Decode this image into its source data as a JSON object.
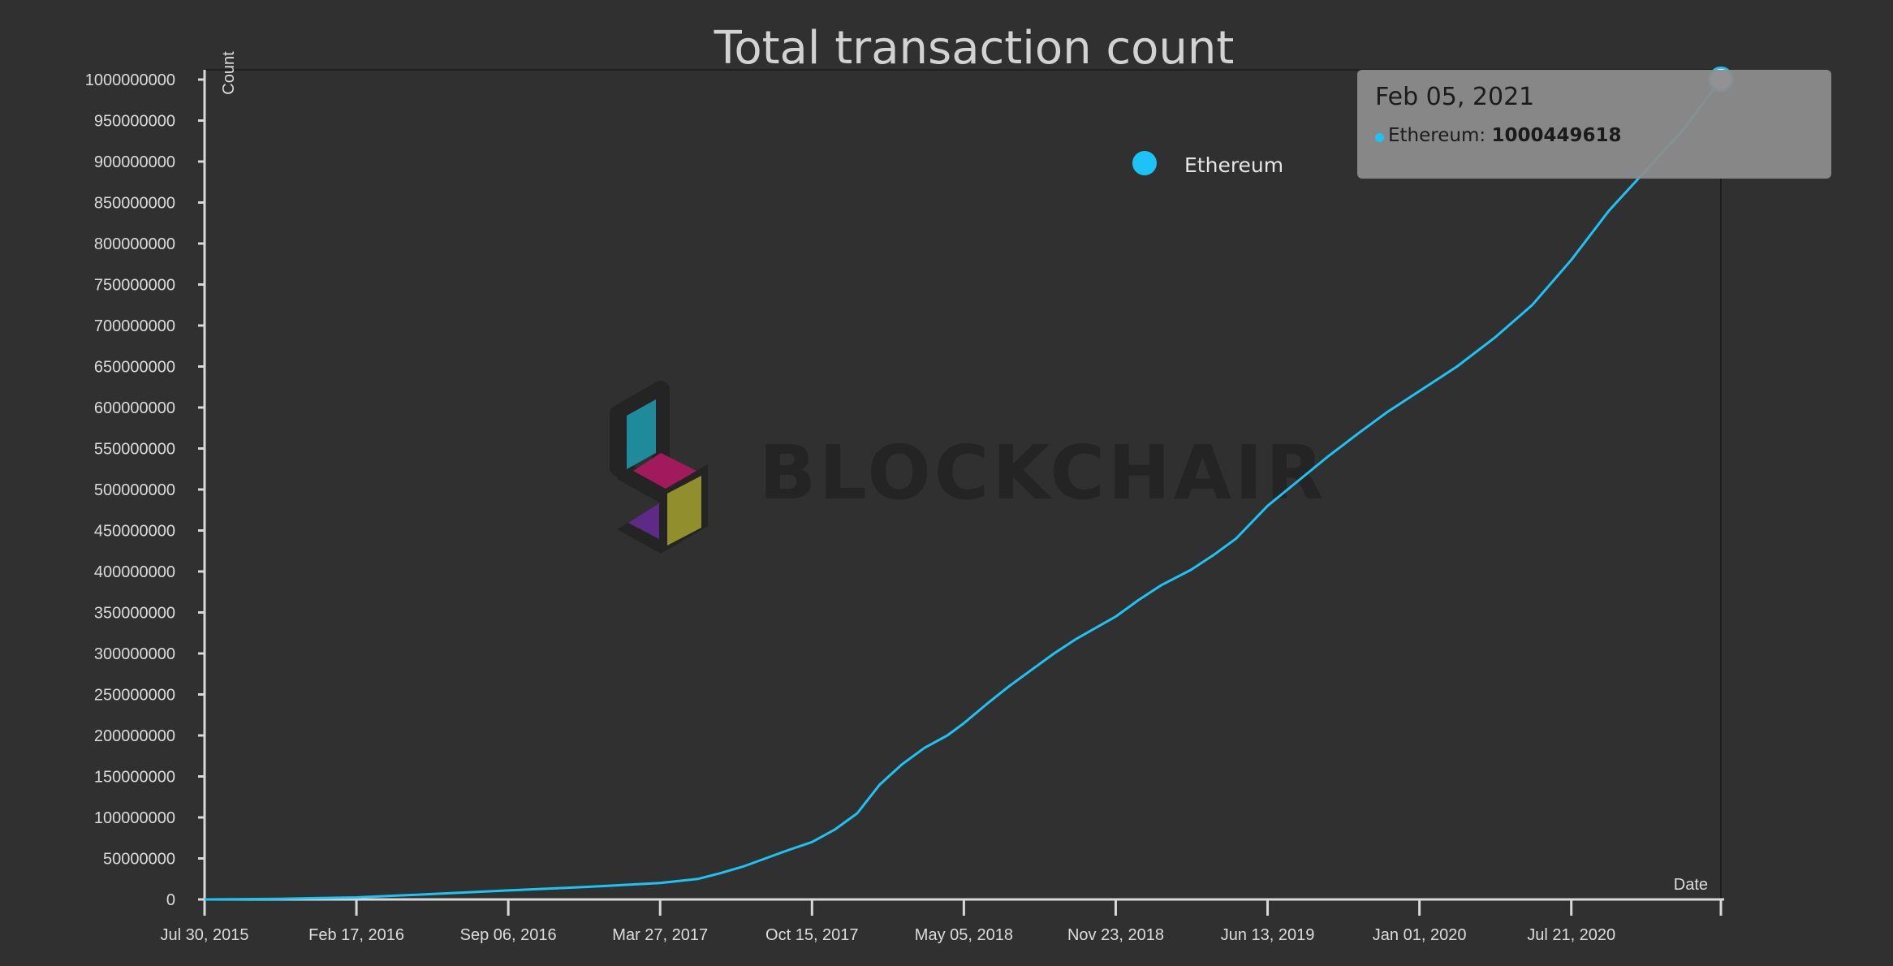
{
  "chart_data": {
    "type": "line",
    "title": "Total transaction count",
    "xlabel": "Date",
    "ylabel": "Count",
    "ylim": [
      0,
      1000000000
    ],
    "yticks": [
      0,
      50000000,
      100000000,
      150000000,
      200000000,
      250000000,
      300000000,
      350000000,
      400000000,
      450000000,
      500000000,
      550000000,
      600000000,
      650000000,
      700000000,
      750000000,
      800000000,
      850000000,
      900000000,
      950000000,
      1000000000
    ],
    "xlim": [
      "2015-07-30",
      "2021-02-05"
    ],
    "xticks": [
      {
        "date": "2015-07-30",
        "label": "Jul 30, 2015"
      },
      {
        "date": "2016-02-17",
        "label": "Feb 17, 2016"
      },
      {
        "date": "2016-09-06",
        "label": "Sep 06, 2016"
      },
      {
        "date": "2017-03-27",
        "label": "Mar 27, 2017"
      },
      {
        "date": "2017-10-15",
        "label": "Oct 15, 2017"
      },
      {
        "date": "2018-05-05",
        "label": "May 05, 2018"
      },
      {
        "date": "2018-11-23",
        "label": "Nov 23, 2018"
      },
      {
        "date": "2019-06-13",
        "label": "Jun 13, 2019"
      },
      {
        "date": "2020-01-01",
        "label": "Jan 01, 2020"
      },
      {
        "date": "2020-07-21",
        "label": "Jul 21, 2020"
      },
      {
        "date": "2021-02-05",
        "label": ""
      }
    ],
    "grid": false,
    "legend_position": "top-right",
    "series": [
      {
        "name": "Ethereum",
        "color": "#1ec3f5",
        "points": [
          [
            "2015-07-30",
            0
          ],
          [
            "2015-11-07",
            800000
          ],
          [
            "2016-02-17",
            2500000
          ],
          [
            "2016-05-27",
            6500000
          ],
          [
            "2016-09-06",
            11000000
          ],
          [
            "2016-12-15",
            15000000
          ],
          [
            "2017-03-27",
            20000000
          ],
          [
            "2017-05-16",
            25000000
          ],
          [
            "2017-06-15",
            32000000
          ],
          [
            "2017-07-15",
            40000000
          ],
          [
            "2017-08-14",
            50000000
          ],
          [
            "2017-09-13",
            60000000
          ],
          [
            "2017-10-15",
            70000000
          ],
          [
            "2017-11-14",
            85000000
          ],
          [
            "2017-12-14",
            105000000
          ],
          [
            "2018-01-13",
            140000000
          ],
          [
            "2018-02-12",
            165000000
          ],
          [
            "2018-03-14",
            185000000
          ],
          [
            "2018-04-13",
            200000000
          ],
          [
            "2018-05-05",
            215000000
          ],
          [
            "2018-06-04",
            238000000
          ],
          [
            "2018-07-04",
            260000000
          ],
          [
            "2018-08-03",
            280000000
          ],
          [
            "2018-09-02",
            300000000
          ],
          [
            "2018-10-02",
            318000000
          ],
          [
            "2018-11-23",
            345000000
          ],
          [
            "2018-12-23",
            365000000
          ],
          [
            "2019-01-22",
            383000000
          ],
          [
            "2019-03-03",
            402000000
          ],
          [
            "2019-04-02",
            420000000
          ],
          [
            "2019-05-02",
            440000000
          ],
          [
            "2019-06-13",
            480000000
          ],
          [
            "2019-07-23",
            510000000
          ],
          [
            "2019-09-01",
            540000000
          ],
          [
            "2019-10-11",
            568000000
          ],
          [
            "2019-11-20",
            595000000
          ],
          [
            "2020-01-01",
            620000000
          ],
          [
            "2020-02-20",
            650000000
          ],
          [
            "2020-04-10",
            685000000
          ],
          [
            "2020-05-30",
            725000000
          ],
          [
            "2020-07-21",
            780000000
          ],
          [
            "2020-09-09",
            840000000
          ],
          [
            "2020-10-29",
            890000000
          ],
          [
            "2020-12-18",
            940000000
          ],
          [
            "2021-02-05",
            1000449618
          ]
        ]
      }
    ],
    "tooltip": {
      "date": "Feb 05, 2021",
      "series_name": "Ethereum",
      "value": "1000449618"
    }
  },
  "watermark": {
    "text": "BLOCKCHAIR",
    "colors": {
      "teal": "#1f8b9a",
      "magenta": "#a11b5c",
      "purple": "#5d2b86",
      "olive": "#918f2d",
      "frame": "#242424"
    }
  }
}
